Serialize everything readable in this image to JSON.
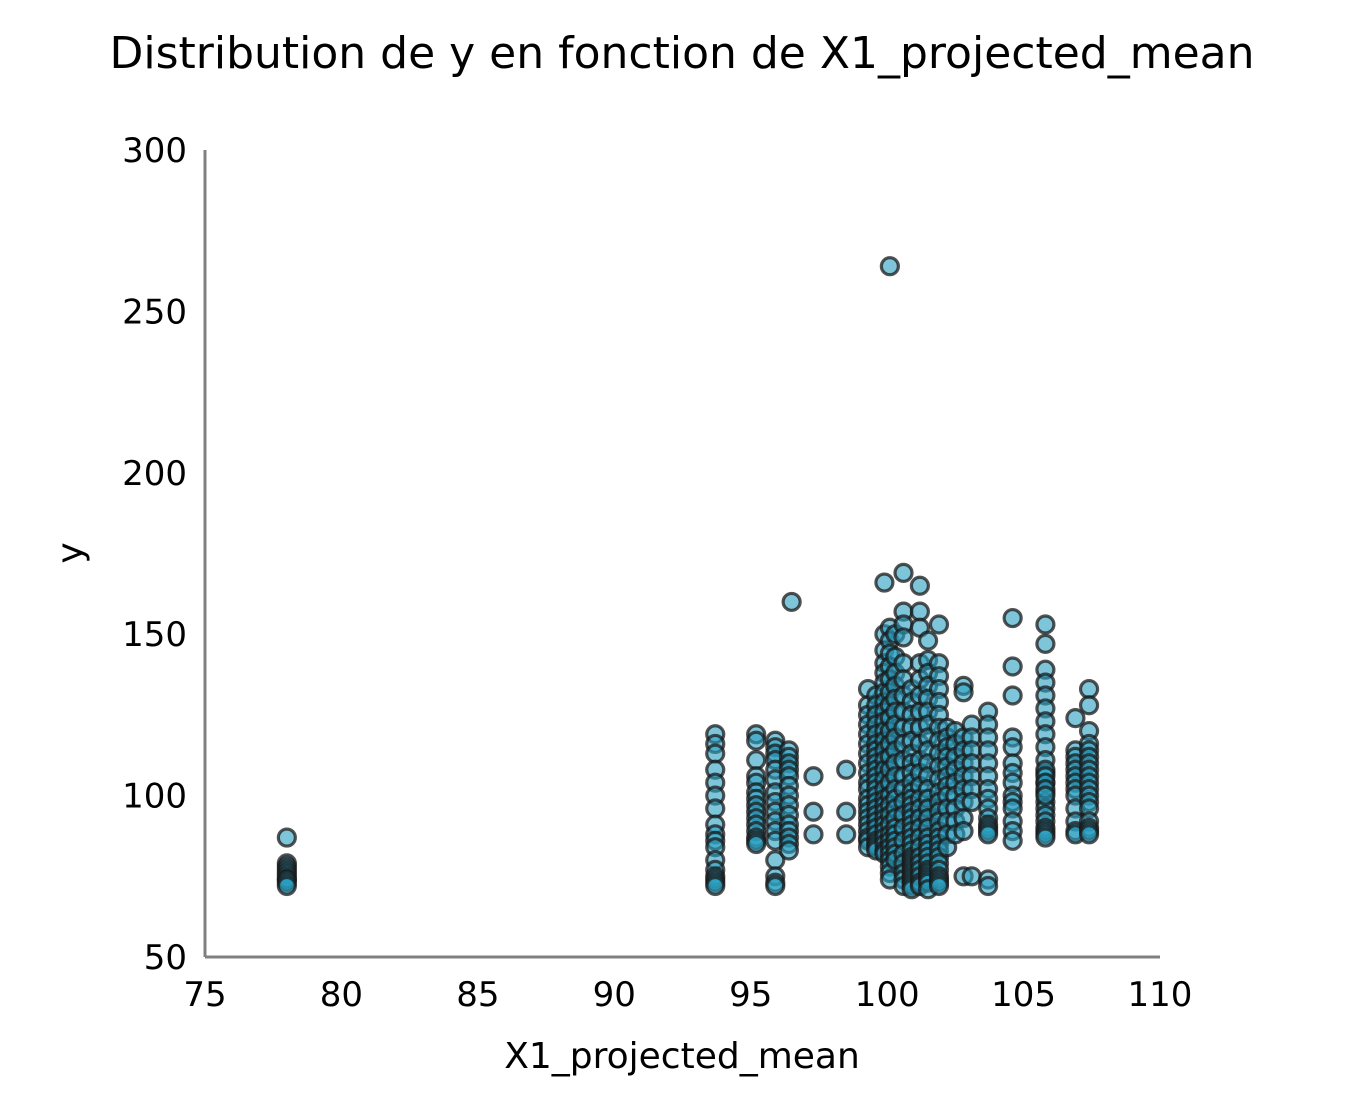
{
  "chart_data": {
    "type": "scatter",
    "title": "Distribution de y en fonction de X1_projected_mean",
    "xlabel": "X1_projected_mean",
    "ylabel": "y",
    "xlim": [
      75,
      110
    ],
    "ylim": [
      50,
      300
    ],
    "xticks": [
      "75",
      "80",
      "85",
      "90",
      "95",
      "100",
      "105",
      "110"
    ],
    "yticks": [
      "50",
      "100",
      "150",
      "200",
      "250",
      "300"
    ],
    "grid": false,
    "legend": "none",
    "marker_color": "#2a9fc0",
    "marker_edge_color": "#1a1a1a",
    "series": [
      {
        "x": [
          78,
          78,
          78,
          78,
          78,
          78,
          78,
          78,
          78,
          78,
          93.7,
          93.7,
          93.7,
          93.7,
          93.7,
          93.7,
          93.7,
          93.7,
          93.7,
          93.7,
          93.7,
          93.7,
          93.7,
          93.7,
          93.7,
          93.7,
          93.7,
          95.2,
          95.2,
          95.2,
          95.2,
          95.2,
          95.2,
          95.2,
          95.2,
          95.2,
          95.2,
          95.2,
          95.2,
          95.2,
          95.2,
          95.2,
          95.9,
          95.9,
          95.9,
          95.9,
          95.9,
          95.9,
          95.9,
          95.9,
          95.9,
          95.9,
          95.9,
          95.9,
          95.9,
          95.9,
          95.9,
          95.9,
          96.4,
          96.4,
          96.4,
          96.4,
          96.4,
          96.4,
          96.4,
          96.4,
          96.4,
          96.4,
          96.4,
          96.4,
          96.4,
          96.4,
          96.5,
          97.3,
          97.3,
          97.3,
          98.5,
          98.5,
          98.5,
          99.3,
          99.3,
          99.3,
          99.3,
          99.3,
          99.3,
          99.3,
          99.3,
          99.3,
          99.3,
          99.3,
          99.3,
          99.3,
          99.3,
          99.3,
          99.3,
          99.3,
          99.3,
          99.3,
          99.3,
          99.6,
          99.6,
          99.6,
          99.6,
          99.6,
          99.6,
          99.6,
          99.6,
          99.6,
          99.6,
          99.6,
          99.6,
          99.6,
          99.6,
          99.6,
          99.6,
          99.6,
          99.6,
          99.6,
          99.6,
          99.6,
          99.6,
          99.6,
          99.6,
          99.9,
          99.9,
          99.9,
          99.9,
          99.9,
          99.9,
          99.9,
          99.9,
          99.9,
          99.9,
          99.9,
          99.9,
          99.9,
          99.9,
          99.9,
          99.9,
          99.9,
          99.9,
          99.9,
          99.9,
          99.9,
          99.9,
          99.9,
          99.9,
          99.9,
          99.9,
          99.9,
          100.1,
          100.1,
          100.1,
          100.1,
          100.1,
          100.1,
          100.1,
          100.1,
          100.1,
          100.1,
          100.1,
          100.1,
          100.1,
          100.1,
          100.1,
          100.1,
          100.1,
          100.1,
          100.1,
          100.1,
          100.1,
          100.1,
          100.1,
          100.1,
          100.1,
          100.1,
          100.3,
          100.3,
          100.3,
          100.3,
          100.3,
          100.3,
          100.3,
          100.3,
          100.3,
          100.3,
          100.3,
          100.3,
          100.3,
          100.3,
          100.3,
          100.3,
          100.3,
          100.3,
          100.3,
          100.3,
          100.3,
          100.6,
          100.6,
          100.6,
          100.6,
          100.6,
          100.6,
          100.6,
          100.6,
          100.6,
          100.6,
          100.6,
          100.6,
          100.6,
          100.6,
          100.6,
          100.6,
          100.6,
          100.6,
          100.6,
          100.6,
          100.6,
          100.6,
          100.9,
          100.9,
          100.9,
          100.9,
          100.9,
          100.9,
          100.9,
          100.9,
          100.9,
          100.9,
          100.9,
          100.9,
          100.9,
          100.9,
          100.9,
          100.9,
          100.9,
          100.9,
          100.9,
          100.9,
          100.9,
          100.9,
          100.9,
          100.9,
          100.9,
          100.9,
          100.9,
          100.9,
          100.9,
          100.9,
          101.2,
          101.2,
          101.2,
          101.2,
          101.2,
          101.2,
          101.2,
          101.2,
          101.2,
          101.2,
          101.2,
          101.2,
          101.2,
          101.2,
          101.2,
          101.2,
          101.2,
          101.2,
          101.2,
          101.2,
          101.2,
          101.2,
          101.2,
          101.2,
          101.5,
          101.5,
          101.5,
          101.5,
          101.5,
          101.5,
          101.5,
          101.5,
          101.5,
          101.5,
          101.5,
          101.5,
          101.5,
          101.5,
          101.5,
          101.5,
          101.5,
          101.5,
          101.5,
          101.5,
          101.5,
          101.5,
          101.5,
          101.5,
          101.5,
          101.5,
          101.5,
          101.9,
          101.9,
          101.9,
          101.9,
          101.9,
          101.9,
          101.9,
          101.9,
          101.9,
          101.9,
          101.9,
          101.9,
          101.9,
          101.9,
          101.9,
          101.9,
          101.9,
          101.9,
          101.9,
          101.9,
          101.9,
          101.9,
          101.9,
          101.9,
          101.9,
          101.9,
          102.2,
          102.2,
          102.2,
          102.2,
          102.2,
          102.2,
          102.2,
          102.2,
          102.2,
          102.2,
          102.2,
          102.2,
          102.5,
          102.5,
          102.5,
          102.5,
          102.5,
          102.5,
          102.5,
          102.5,
          102.5,
          102.8,
          102.8,
          102.8,
          102.8,
          102.8,
          102.8,
          102.8,
          102.8,
          102.8,
          102.8,
          102.8,
          103.1,
          103.1,
          103.1,
          103.1,
          103.1,
          103.1,
          103.1,
          103.1,
          103.7,
          103.7,
          103.7,
          103.7,
          103.7,
          103.7,
          103.7,
          103.7,
          103.7,
          103.7,
          103.7,
          103.7,
          103.7,
          103.7,
          103.7,
          103.7,
          104.6,
          104.6,
          104.6,
          104.6,
          104.6,
          104.6,
          104.6,
          104.6,
          104.6,
          104.6,
          104.6,
          104.6,
          104.6,
          104.6,
          105.8,
          105.8,
          105.8,
          105.8,
          105.8,
          105.8,
          105.8,
          105.8,
          105.8,
          105.8,
          105.8,
          105.8,
          105.8,
          105.8,
          105.8,
          105.8,
          105.8,
          105.8,
          105.8,
          105.8,
          105.8,
          105.8,
          105.8,
          105.8,
          105.8,
          105.8,
          106.9,
          106.9,
          106.9,
          106.9,
          106.9,
          106.9,
          106.9,
          106.9,
          106.9,
          106.9,
          106.9,
          106.9,
          106.9,
          107.4,
          107.4,
          107.4,
          107.4,
          107.4,
          107.4,
          107.4,
          107.4,
          107.4,
          107.4,
          107.4,
          107.4,
          107.4,
          107.4,
          107.4,
          107.4,
          107.4,
          107.4
        ],
        "y": [
          87,
          79,
          78,
          77,
          76,
          75,
          74,
          74,
          73,
          72,
          119,
          116,
          113,
          108,
          104,
          100,
          96,
          91,
          88,
          86,
          84,
          80,
          77,
          75,
          74,
          73,
          72,
          119,
          117,
          111,
          106,
          104,
          101,
          99,
          97,
          95,
          93,
          91,
          89,
          87,
          86,
          85,
          117,
          115,
          113,
          111,
          108,
          105,
          101,
          98,
          95,
          92,
          89,
          86,
          80,
          75,
          73,
          72,
          114,
          112,
          110,
          108,
          106,
          103,
          100,
          97,
          94,
          91,
          89,
          87,
          85,
          83,
          160,
          106,
          95,
          88,
          108,
          95,
          88,
          133,
          128,
          125,
          122,
          119,
          116,
          113,
          110,
          107,
          104,
          102,
          99,
          97,
          95,
          93,
          91,
          89,
          87,
          86,
          84,
          131,
          128,
          125,
          122,
          119,
          116,
          114,
          112,
          110,
          108,
          106,
          104,
          102,
          100,
          98,
          96,
          94,
          92,
          90,
          88,
          86,
          85,
          84,
          83,
          166,
          150,
          145,
          141,
          138,
          135,
          132,
          129,
          126,
          123,
          120,
          117,
          114,
          111,
          108,
          105,
          102,
          99,
          97,
          95,
          93,
          91,
          89,
          87,
          85,
          83,
          82,
          264,
          152,
          148,
          144,
          140,
          136,
          132,
          128,
          124,
          120,
          116,
          112,
          108,
          104,
          100,
          97,
          94,
          91,
          88,
          86,
          84,
          82,
          80,
          78,
          76,
          74,
          150,
          143,
          138,
          134,
          130,
          126,
          122,
          118,
          114,
          110,
          106,
          102,
          99,
          96,
          93,
          90,
          88,
          86,
          84,
          82,
          80,
          169,
          157,
          153,
          149,
          141,
          136,
          131,
          126,
          121,
          116,
          111,
          106,
          102,
          98,
          94,
          90,
          86,
          82,
          79,
          76,
          74,
          72,
          133,
          129,
          125,
          121,
          117,
          113,
          110,
          107,
          104,
          101,
          99,
          97,
          95,
          93,
          91,
          89,
          87,
          85,
          83,
          81,
          80,
          79,
          78,
          77,
          76,
          75,
          74,
          73,
          72,
          71,
          165,
          157,
          152,
          141,
          136,
          131,
          126,
          121,
          116,
          111,
          107,
          103,
          99,
          96,
          93,
          90,
          87,
          84,
          81,
          79,
          77,
          75,
          73,
          72,
          148,
          142,
          138,
          134,
          130,
          126,
          122,
          118,
          114,
          110,
          106,
          102,
          99,
          96,
          93,
          90,
          87,
          85,
          83,
          81,
          79,
          77,
          76,
          75,
          74,
          73,
          71,
          153,
          141,
          137,
          133,
          129,
          125,
          121,
          117,
          113,
          109,
          105,
          101,
          98,
          95,
          92,
          89,
          87,
          85,
          83,
          81,
          79,
          77,
          75,
          74,
          73,
          72,
          121,
          118,
          115,
          112,
          109,
          106,
          103,
          100,
          96,
          92,
          88,
          84,
          120,
          116,
          112,
          108,
          104,
          100,
          96,
          92,
          88,
          134,
          132,
          118,
          114,
          110,
          106,
          102,
          98,
          93,
          89,
          75,
          122,
          118,
          114,
          110,
          106,
          102,
          98,
          75,
          126,
          122,
          118,
          114,
          110,
          106,
          102,
          99,
          96,
          93,
          91,
          90,
          89,
          88,
          74,
          72,
          155,
          140,
          131,
          118,
          115,
          110,
          107,
          104,
          100,
          98,
          96,
          92,
          89,
          86,
          153,
          147,
          139,
          135,
          131,
          127,
          123,
          119,
          115,
          111,
          107,
          104,
          101,
          98,
          96,
          94,
          92,
          90,
          89,
          88,
          87,
          108,
          106,
          104,
          102,
          100,
          124,
          114,
          112,
          110,
          108,
          106,
          104,
          102,
          100,
          96,
          92,
          89,
          88,
          133,
          128,
          120,
          116,
          114,
          112,
          110,
          108,
          106,
          104,
          102,
          100,
          98,
          96,
          92,
          90,
          89,
          88
        ]
      }
    ]
  }
}
